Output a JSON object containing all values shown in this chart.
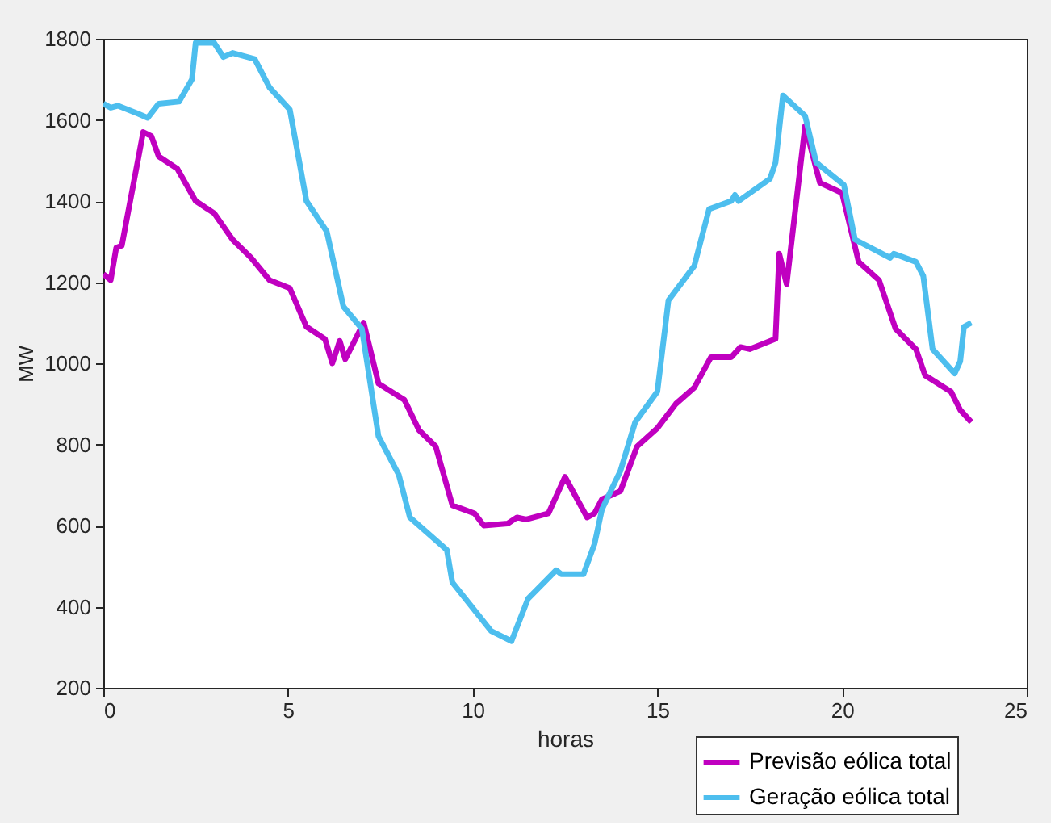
{
  "chart_data": {
    "type": "line",
    "xlabel": "horas",
    "ylabel": "MW",
    "xlim": [
      0,
      25
    ],
    "xticks": [
      0,
      5,
      10,
      15,
      20,
      25
    ],
    "ylim": [
      200,
      1800
    ],
    "yticks": [
      200,
      400,
      600,
      800,
      1000,
      1200,
      1400,
      1600,
      1800
    ],
    "grid": false,
    "legend": "bottom right",
    "marker": "none",
    "line_style": "solid",
    "series": [
      {
        "name": "Previsão eólica total",
        "color": "#c000c0",
        "x": [
          0,
          0.2,
          0.35,
          0.5,
          1.08,
          1.3,
          1.5,
          2.0,
          2.5,
          3.0,
          3.5,
          4.0,
          4.5,
          5.05,
          5.5,
          6.0,
          6.2,
          6.4,
          6.55,
          7.05,
          7.45,
          8.15,
          8.55,
          9.0,
          9.45,
          10.05,
          10.3,
          10.95,
          11.2,
          11.45,
          12.05,
          12.5,
          13.1,
          13.3,
          13.5,
          14.0,
          14.45,
          15.0,
          15.5,
          16.0,
          16.45,
          17.0,
          17.25,
          17.5,
          18.2,
          18.3,
          18.5,
          19.0,
          19.4,
          20.0,
          20.45,
          21.0,
          21.45,
          22.0,
          22.25,
          22.95,
          23.2,
          23.5
        ],
        "values": [
          1220,
          1205,
          1285,
          1290,
          1570,
          1560,
          1510,
          1480,
          1400,
          1370,
          1305,
          1260,
          1205,
          1185,
          1090,
          1060,
          1000,
          1055,
          1010,
          1100,
          950,
          910,
          835,
          795,
          650,
          630,
          600,
          605,
          620,
          615,
          630,
          720,
          620,
          630,
          665,
          685,
          795,
          840,
          900,
          940,
          1015,
          1015,
          1040,
          1035,
          1060,
          1270,
          1195,
          1585,
          1445,
          1420,
          1250,
          1205,
          1085,
          1035,
          970,
          930,
          885,
          855
        ]
      },
      {
        "name": "Geração eólica total",
        "color": "#4dbeee",
        "x": [
          0,
          0.2,
          0.4,
          0.95,
          1.2,
          1.5,
          2.05,
          2.4,
          2.5,
          3.0,
          3.25,
          3.5,
          4.1,
          4.5,
          5.05,
          5.5,
          6.05,
          6.5,
          7.0,
          7.45,
          8.0,
          8.3,
          9.3,
          9.45,
          10.5,
          11.05,
          11.5,
          12.26,
          12.4,
          13.0,
          13.3,
          13.5,
          14.0,
          14.4,
          15.0,
          15.3,
          16.0,
          16.4,
          17.0,
          17.1,
          17.2,
          18.05,
          18.2,
          18.4,
          19.0,
          19.3,
          20.05,
          20.35,
          21.3,
          21.4,
          22.0,
          22.2,
          22.45,
          23.05,
          23.2,
          23.3,
          23.5
        ],
        "values": [
          1640,
          1630,
          1635,
          1615,
          1605,
          1640,
          1645,
          1700,
          1790,
          1790,
          1755,
          1765,
          1750,
          1680,
          1625,
          1400,
          1325,
          1140,
          1085,
          820,
          725,
          620,
          540,
          460,
          340,
          315,
          420,
          490,
          480,
          480,
          555,
          640,
          735,
          855,
          930,
          1155,
          1240,
          1380,
          1400,
          1415,
          1400,
          1455,
          1495,
          1660,
          1610,
          1495,
          1440,
          1305,
          1260,
          1270,
          1250,
          1215,
          1035,
          975,
          1005,
          1090,
          1100
        ]
      }
    ]
  }
}
